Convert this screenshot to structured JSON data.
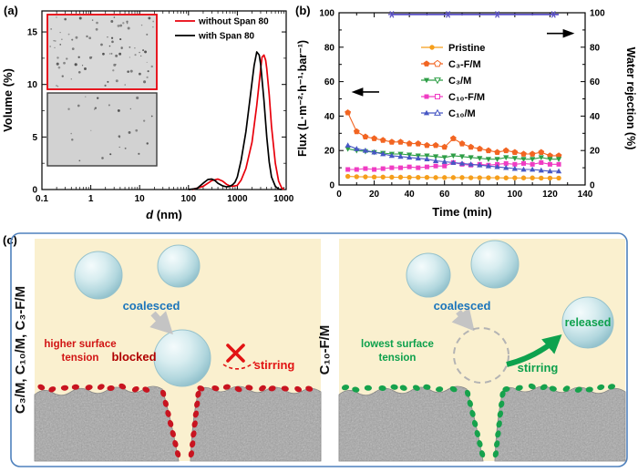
{
  "figure": {
    "panel_a_label": "(a)",
    "panel_b_label": "(b)",
    "panel_c_label": "(c)"
  },
  "chart_data": [
    {
      "id": "particle-size-distribution",
      "type": "line",
      "xlabel_italic": "d",
      "xlabel_rest": " (nm)",
      "ylabel": "Volume (%)",
      "x_scale": "log",
      "xlim": [
        0.1,
        10000
      ],
      "ylim": [
        0,
        17
      ],
      "x_ticks": [
        0.1,
        1,
        10,
        100,
        1000,
        10000
      ],
      "x_tick_labels": [
        "0.1",
        "1",
        "10",
        "100",
        "1000",
        "10000"
      ],
      "y_ticks": [
        0,
        5,
        10,
        15
      ],
      "grid": false,
      "legend_position": "top-right",
      "series": [
        {
          "name": "without Span 80",
          "color": "#e8000b",
          "x": [
            120,
            200,
            300,
            400,
            500,
            600,
            700,
            800,
            1000,
            1200,
            1500,
            2000,
            2500,
            3000,
            3200,
            3500,
            3800,
            4000,
            4500,
            5000,
            6000,
            7000,
            8000,
            9000
          ],
          "y": [
            0,
            0.3,
            0.85,
            1.0,
            0.8,
            0.5,
            0.35,
            0.3,
            0.4,
            0.9,
            2.0,
            4.5,
            8.0,
            11.5,
            12.6,
            12.8,
            12.3,
            11.5,
            9.0,
            6.0,
            2.5,
            0.8,
            0.2,
            0
          ]
        },
        {
          "name": "with Span 80",
          "color": "#000000",
          "x": [
            100,
            150,
            200,
            250,
            300,
            350,
            400,
            500,
            600,
            700,
            800,
            900,
            1000,
            1200,
            1500,
            1800,
            2000,
            2200,
            2500,
            2800,
            3000,
            3500,
            4000,
            4500,
            5000,
            6000,
            7000,
            8000
          ],
          "y": [
            0,
            0.1,
            0.6,
            0.95,
            1.0,
            0.85,
            0.6,
            0.35,
            0.25,
            0.3,
            0.45,
            0.7,
            1.2,
            2.8,
            5.5,
            8.5,
            10.2,
            11.8,
            13.1,
            12.8,
            11.9,
            8.5,
            5.0,
            2.6,
            1.2,
            0.3,
            0.05,
            0
          ]
        }
      ],
      "insets": [
        {
          "border": "#e8000b",
          "desc": "micrograph without Span 80"
        },
        {
          "border": "#3c3c3c",
          "desc": "micrograph with Span 80"
        }
      ]
    },
    {
      "id": "flux-and-rejection-vs-time",
      "type": "line",
      "xlabel": "Time (min)",
      "ylabel_left": "Flux (L·m⁻²·h⁻¹·bar⁻¹)",
      "ylabel_right": "Water rejection (%)",
      "xlim": [
        0,
        140
      ],
      "x_ticks": [
        0,
        20,
        40,
        60,
        80,
        100,
        120,
        140
      ],
      "ylim_left": [
        0,
        100
      ],
      "y_ticks_left": [
        0,
        20,
        40,
        60,
        80,
        100
      ],
      "ylim_right": [
        0,
        100
      ],
      "y_ticks_right": [
        0,
        20,
        40,
        60,
        80,
        100
      ],
      "grid": false,
      "legend_position": "upper-middle",
      "time": [
        5,
        10,
        15,
        20,
        25,
        30,
        35,
        40,
        45,
        50,
        55,
        60,
        65,
        70,
        75,
        80,
        85,
        90,
        95,
        100,
        105,
        110,
        115,
        120,
        125
      ],
      "flux_series": [
        {
          "name": "Pristine",
          "color": "#f59e1b",
          "marker": "circle",
          "values": [
            5.0,
            4.8,
            4.7,
            4.6,
            4.6,
            4.5,
            4.5,
            4.4,
            4.4,
            4.4,
            4.3,
            4.3,
            4.3,
            4.3,
            4.2,
            4.2,
            4.2,
            4.2,
            4.1,
            4.1,
            4.1,
            4.1,
            4.0,
            4.0,
            4.0
          ]
        },
        {
          "name": "C₃-F/M",
          "color": "#f26522",
          "marker": "pentagon",
          "values": [
            42,
            31,
            28,
            27,
            26,
            25,
            25,
            24,
            24,
            23,
            23,
            22,
            27,
            24,
            22,
            21,
            20,
            19,
            20,
            19,
            18,
            18,
            19,
            17,
            17
          ]
        },
        {
          "name": "C₃/M",
          "color": "#2e9e46",
          "marker": "triangle-down",
          "values": [
            21,
            20,
            19.5,
            19,
            18.5,
            18,
            18,
            17.5,
            17,
            17,
            16.5,
            16,
            17,
            16.5,
            16,
            15.5,
            15,
            15,
            16,
            15.5,
            15,
            15,
            16,
            15,
            15
          ]
        },
        {
          "name": "C₁₀-F/M",
          "color": "#f03cc3",
          "marker": "square",
          "values": [
            9,
            9,
            9.5,
            9,
            9.5,
            10,
            10,
            10.5,
            10,
            10.5,
            11,
            11,
            13,
            12,
            11.5,
            12,
            11.5,
            12,
            12.5,
            12,
            12.5,
            12,
            13,
            12,
            12
          ]
        },
        {
          "name": "C₁₀/M",
          "color": "#4757c4",
          "marker": "triangle-up",
          "values": [
            23,
            21,
            20,
            19,
            18,
            17,
            16.5,
            16,
            15.5,
            15,
            14,
            13.5,
            13,
            12.5,
            12,
            11.5,
            11,
            10.5,
            10,
            9.5,
            9,
            9,
            8.5,
            8,
            8
          ]
        }
      ],
      "rejection_series": {
        "name": "Water rejection",
        "color": "#5a50c5",
        "marker": "star",
        "time": [
          30,
          40,
          50,
          60,
          70,
          80,
          90,
          100,
          110,
          120,
          125
        ],
        "values": [
          99,
          99,
          99,
          99,
          99,
          99,
          99,
          99,
          99,
          99,
          99
        ],
        "star_times": [
          30,
          62,
          90,
          122
        ]
      }
    }
  ],
  "panel_c": {
    "label": "(c)",
    "border_color": "#4f81bd",
    "background": "#faf0cf",
    "left": {
      "side_label": "C₃/M, C₁₀/M, C₃-F/M",
      "coalesced": "coalesced",
      "blocked": "blocked",
      "stirring": "stirring",
      "tension_1": "higher surface",
      "tension_2": "tension",
      "dot_color": "#c81420"
    },
    "right": {
      "side_label": "C₁₀-F/M",
      "coalesced": "coalesced",
      "released": "released",
      "stirring": "stirring",
      "tension_1": "lowest surface",
      "tension_2": "tension",
      "dot_color": "#16a24c"
    }
  }
}
